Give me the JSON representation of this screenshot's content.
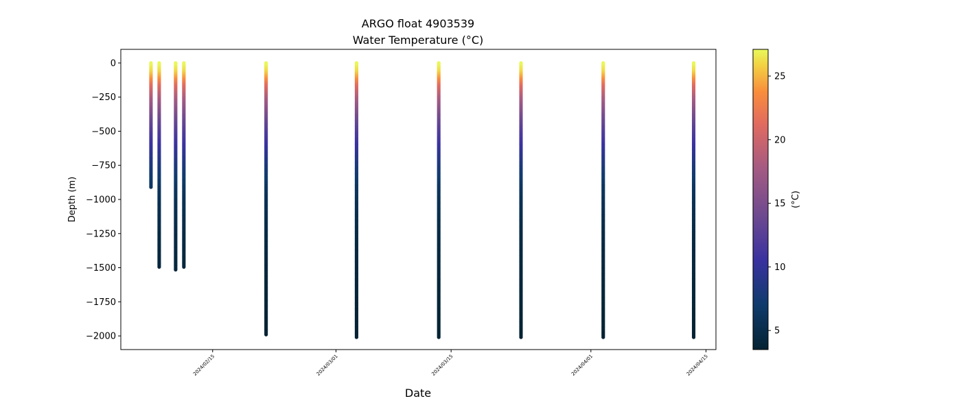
{
  "chart_data": {
    "type": "scatter",
    "title": "ARGO float 4903539",
    "subtitle": "Water Temperature (°C)",
    "xlabel": "Date",
    "ylabel": "Depth (m)",
    "xlim": [
      "2024-02-03T20:00",
      "2024-04-16T05:00"
    ],
    "ylim": [
      -2100,
      100
    ],
    "x_ticks": [
      "2024/02/15",
      "2024/03/01",
      "2024/03/15",
      "2024/04/01",
      "2024/04/15"
    ],
    "y_ticks": [
      0,
      -250,
      -500,
      -750,
      -1000,
      -1250,
      -1500,
      -1750,
      -2000
    ],
    "grid": false,
    "colorbar": {
      "label": "(°C)",
      "colormap": "thermal",
      "range": [
        3.5,
        27.1
      ],
      "ticks": [
        5,
        10,
        15,
        20,
        25
      ],
      "position": "right"
    },
    "profiles": [
      {
        "date": "2024-02-07",
        "max_depth": -910
      },
      {
        "date": "2024-02-08",
        "max_depth": -1495
      },
      {
        "date": "2024-02-10",
        "max_depth": -1515
      },
      {
        "date": "2024-02-11",
        "max_depth": -1495
      },
      {
        "date": "2024-02-21",
        "max_depth": -1990
      },
      {
        "date": "2024-03-03",
        "max_depth": -2010
      },
      {
        "date": "2024-03-13",
        "max_depth": -2010
      },
      {
        "date": "2024-03-23",
        "max_depth": -2010
      },
      {
        "date": "2024-04-02",
        "max_depth": -2010
      },
      {
        "date": "2024-04-13",
        "max_depth": -2010
      }
    ],
    "temperature_profile": {
      "depth": [
        0,
        -50,
        -100,
        -150,
        -250,
        -400,
        -500,
        -650,
        -750,
        -900,
        -1000,
        -1250,
        -1500,
        -1750,
        -2000
      ],
      "temp": [
        27.0,
        26.0,
        24.0,
        21.5,
        18.0,
        14.0,
        12.0,
        9.5,
        8.0,
        6.3,
        5.6,
        4.6,
        4.1,
        3.8,
        3.5
      ]
    }
  }
}
